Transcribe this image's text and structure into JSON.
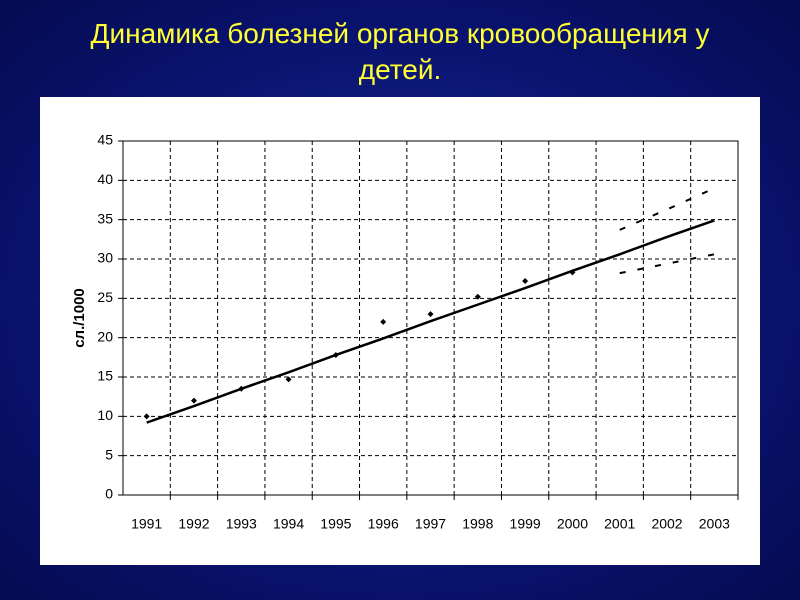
{
  "chart_data": {
    "type": "line",
    "title": "Динамика болезней органов кровообращения у детей.",
    "ylabel": "сл./1000",
    "categories": [
      "1991",
      "1992",
      "1993",
      "1994",
      "1995",
      "1996",
      "1997",
      "1998",
      "1999",
      "2000",
      "2001",
      "2002",
      "2003"
    ],
    "ylim": [
      0,
      45
    ],
    "yticks": [
      0,
      5,
      10,
      15,
      20,
      25,
      30,
      35,
      40,
      45
    ],
    "grid": true,
    "series": [
      {
        "style": "markers",
        "color": "#000000",
        "values": [
          10,
          12,
          13.5,
          14.7,
          17.8,
          22,
          23,
          25.2,
          27.2,
          28.3,
          null,
          null,
          null
        ]
      },
      {
        "style": "solid",
        "color": "#000000",
        "values": [
          9.2,
          11.3,
          13.5,
          15.6,
          17.8,
          19.9,
          22.1,
          24.2,
          26.3,
          28.5,
          30.6,
          32.8,
          34.9
        ]
      },
      {
        "style": "dashed",
        "color": "#000000",
        "values": [
          null,
          null,
          null,
          null,
          null,
          null,
          null,
          null,
          null,
          null,
          33.7,
          36.3,
          39
        ]
      },
      {
        "style": "dashed",
        "color": "#000000",
        "values": [
          null,
          null,
          null,
          null,
          null,
          null,
          null,
          null,
          null,
          null,
          28.2,
          29.4,
          30.6
        ]
      }
    ]
  }
}
